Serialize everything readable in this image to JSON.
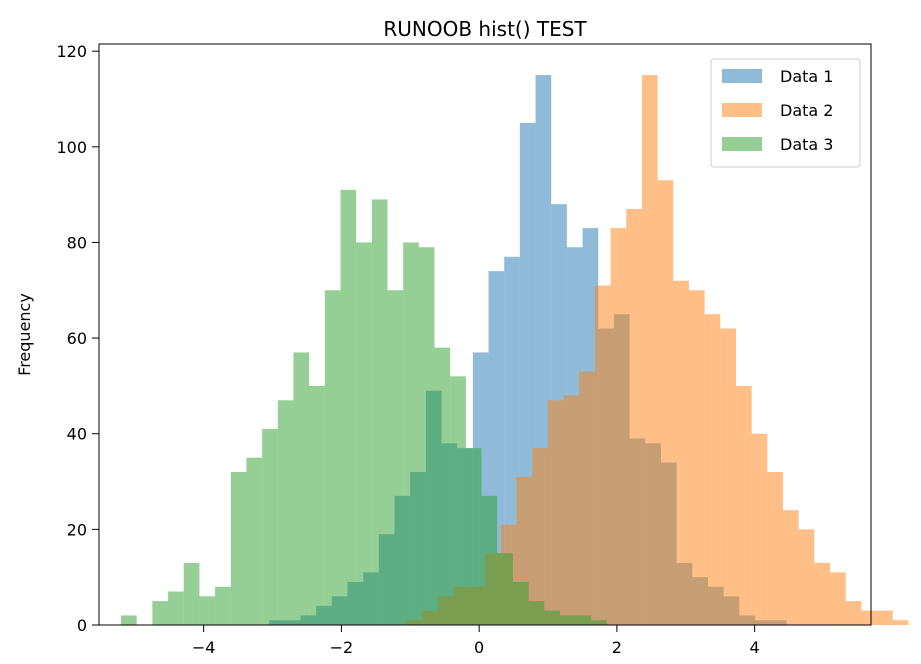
{
  "chart_data": {
    "type": "histogram",
    "title": "RUNOOB hist() TEST",
    "xlabel": "",
    "ylabel": "Frequency",
    "xlim": [
      -5.52,
      5.69
    ],
    "ylim": [
      0,
      121.5
    ],
    "xticks": [
      -4,
      -2,
      0,
      2,
      4
    ],
    "xtick_labels": [
      "−4",
      "−2",
      "0",
      "2",
      "4"
    ],
    "yticks": [
      0,
      20,
      40,
      60,
      80,
      100,
      120
    ],
    "ytick_labels": [
      "0",
      "20",
      "40",
      "60",
      "80",
      "100",
      "120"
    ],
    "grid": false,
    "legend_position": "top-right",
    "alpha": 0.5,
    "series": [
      {
        "name": "Data 1",
        "color": "#1f77b4",
        "bin_start": -3.05,
        "bin_width": 0.2276,
        "counts": [
          1,
          1,
          2,
          4,
          6,
          9,
          11,
          19,
          27,
          32,
          49,
          38,
          37,
          57,
          74,
          77,
          105,
          115,
          88,
          79,
          83,
          62,
          65,
          39,
          38,
          34,
          13,
          10,
          8,
          6,
          2,
          1,
          1
        ]
      },
      {
        "name": "Data 2",
        "color": "#ff7f0e",
        "bin_start": -1.05,
        "bin_width": 0.2276,
        "counts": [
          1,
          3,
          6,
          8,
          8,
          15,
          21,
          31,
          37,
          47,
          48,
          53,
          71,
          83,
          87,
          115,
          93,
          72,
          70,
          65,
          62,
          50,
          40,
          32,
          24,
          20,
          13,
          11,
          5,
          3,
          3,
          1
        ]
      },
      {
        "name": "Data 3",
        "color": "#2ca02c",
        "bin_start": -5.2,
        "bin_width": 0.2276,
        "counts": [
          2,
          0,
          5,
          7,
          13,
          6,
          8,
          32,
          35,
          41,
          47,
          57,
          50,
          70,
          91,
          80,
          89,
          70,
          80,
          79,
          58,
          52,
          37,
          27,
          15,
          9,
          5,
          3,
          2,
          2,
          1
        ]
      }
    ]
  }
}
